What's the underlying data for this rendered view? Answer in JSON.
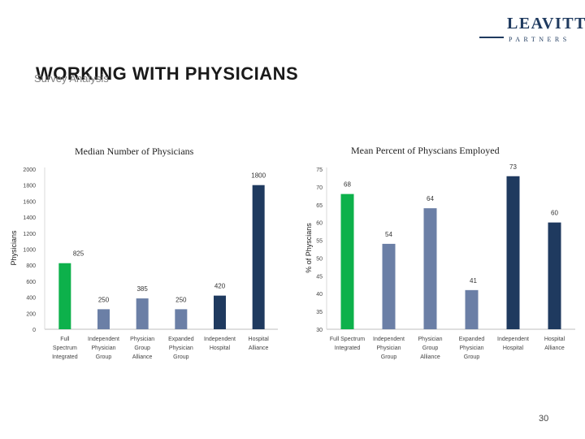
{
  "header": {
    "title": "WORKING WITH PHYSICIANS",
    "subtitle": "Survey Analysis",
    "logo_main": "LEAVITT",
    "logo_sub": "PARTNERS"
  },
  "page_number": "30",
  "colors": {
    "green": "#0db14b",
    "slate": "#6b7fa6",
    "navy": "#1f3a5f"
  },
  "chart_data": [
    {
      "type": "bar",
      "title": "Median Number of Physicians",
      "ylabel": "Physicians",
      "xlabel": "",
      "ylim": [
        0,
        2000
      ],
      "yticks": [
        0,
        200,
        400,
        600,
        800,
        1000,
        1200,
        1400,
        1600,
        1800,
        2000
      ],
      "categories": [
        [
          "Full",
          "Spectrum",
          "Integrated"
        ],
        [
          "Independent",
          "Physician",
          "Group"
        ],
        [
          "Physician",
          "Group",
          "Alliance"
        ],
        [
          "Expanded",
          "Physician",
          "Group"
        ],
        [
          "Independent",
          "Hospital"
        ],
        [
          "Hospital",
          "Alliance"
        ]
      ],
      "values": [
        825,
        250,
        385,
        250,
        420,
        1800
      ],
      "value_labels": [
        "825",
        "250",
        "385",
        "250",
        "420",
        "1800"
      ],
      "bar_colors": [
        "#0db14b",
        "#6b7fa6",
        "#6b7fa6",
        "#6b7fa6",
        "#1f3a5f",
        "#1f3a5f"
      ],
      "grid": false
    },
    {
      "type": "bar",
      "title": "Mean Percent of Physcians Employed",
      "ylabel": "% of Physcians",
      "xlabel": "",
      "ylim": [
        30,
        75
      ],
      "yticks": [
        30,
        35,
        40,
        45,
        50,
        55,
        60,
        65,
        70,
        75
      ],
      "categories": [
        [
          "Full Spectrum",
          "Integrated"
        ],
        [
          "Independent",
          "Physician",
          "Group"
        ],
        [
          "Physician",
          "Group",
          "Alliance"
        ],
        [
          "Expanded",
          "Physician",
          "Group"
        ],
        [
          "Independent",
          "Hospital"
        ],
        [
          "Hospital",
          "Alliance"
        ]
      ],
      "values": [
        68,
        54,
        64,
        41,
        73,
        60
      ],
      "value_labels": [
        "68",
        "54",
        "64",
        "41",
        "73",
        "60"
      ],
      "bar_colors": [
        "#0db14b",
        "#6b7fa6",
        "#6b7fa6",
        "#6b7fa6",
        "#1f3a5f",
        "#1f3a5f"
      ],
      "grid": false
    }
  ]
}
